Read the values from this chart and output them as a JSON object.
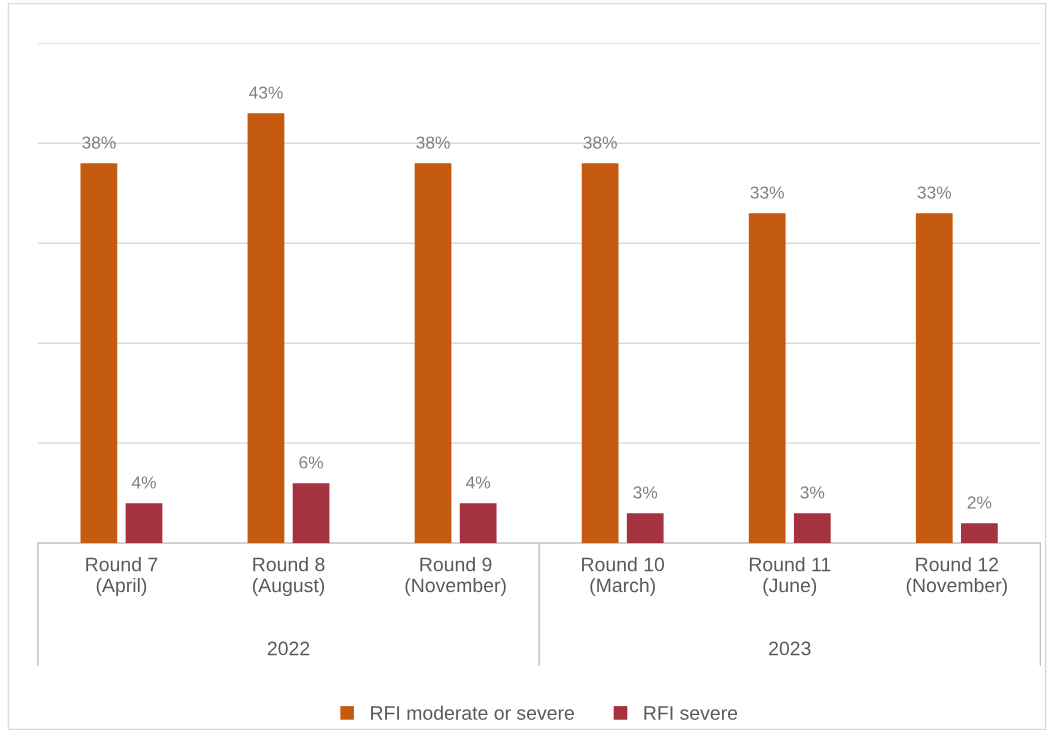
{
  "chart_data": {
    "type": "bar",
    "categories": [
      "Round 7\n(April)",
      "Round 8\n(August)",
      "Round 9\n(November)",
      "Round 10\n(March)",
      "Round 11\n(June)",
      "Round 12\n(November)"
    ],
    "series": [
      {
        "name": "RFI moderate or severe",
        "color": "#c55a11",
        "values": [
          38,
          43,
          38,
          38,
          33,
          33
        ],
        "value_labels": [
          "38%",
          "43%",
          "38%",
          "38%",
          "33%",
          "33%"
        ]
      },
      {
        "name": "RFI severe",
        "color": "#a5323f",
        "values": [
          4,
          6,
          4,
          3,
          3,
          2
        ],
        "value_labels": [
          "4%",
          "6%",
          "4%",
          "3%",
          "3%",
          "2%"
        ]
      }
    ],
    "ylim": [
      0,
      50
    ],
    "yticks": [
      {
        "value": 0,
        "label": null
      },
      {
        "value": 10,
        "label": null
      },
      {
        "value": 20,
        "label": null
      },
      {
        "value": 30,
        "label": null
      },
      {
        "value": 40,
        "label": null
      },
      {
        "value": 50,
        "label": null
      }
    ],
    "tick_labels": "x",
    "grid": "y",
    "legend": "bottom",
    "annotations": [
      "2022",
      "2023"
    ]
  }
}
